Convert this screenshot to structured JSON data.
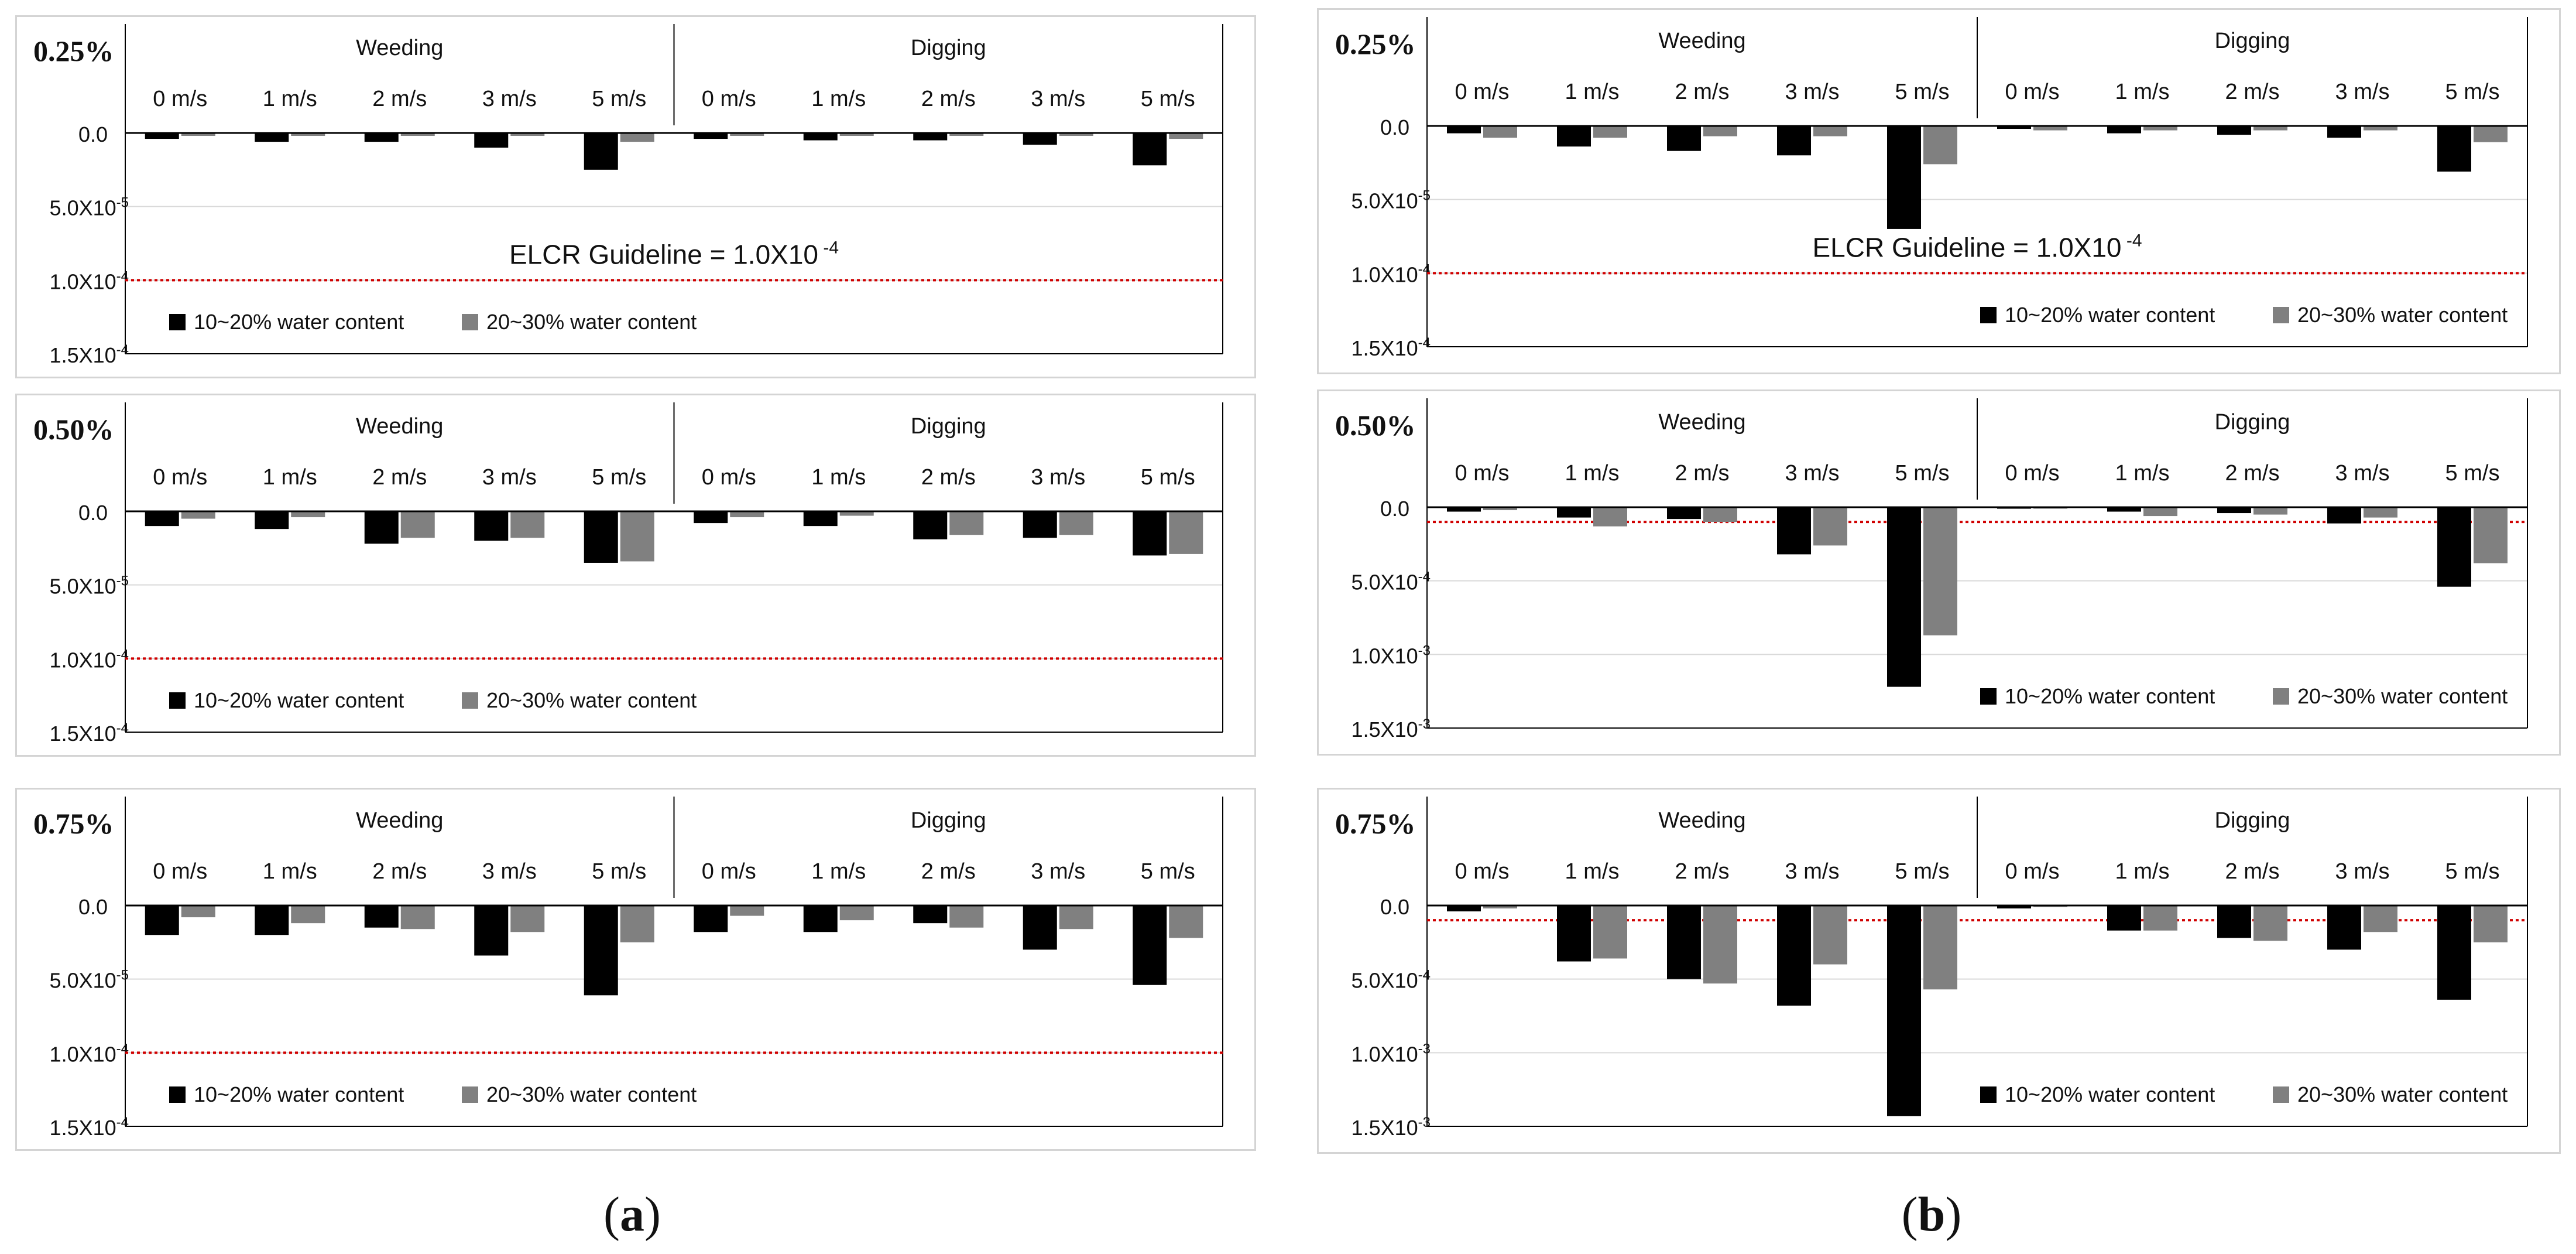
{
  "legend": {
    "series_1": "10~20% water content",
    "series_2": "20~30% water content"
  },
  "guideline_label_base": "ELCR Guideline = 1.0X10",
  "guideline_label_exp": "-4",
  "captions": [
    {
      "open": "(",
      "letter": "a",
      "close": ")"
    },
    {
      "open": "(",
      "letter": "b",
      "close": ")"
    }
  ],
  "colors": {
    "series_1": "#000000",
    "series_2": "#808080",
    "guideline": "#d00000",
    "grid": "#d9d9d9",
    "axis": "#000000"
  },
  "chart_data": [
    {
      "id": "a1",
      "type": "bar",
      "percent_label": "0.25%",
      "groups": [
        "Weeding",
        "Digging"
      ],
      "categories": [
        "0 m/s",
        "1 m/s",
        "2 m/s",
        "3 m/s",
        "5 m/s",
        "0 m/s",
        "1 m/s",
        "2 m/s",
        "3 m/s",
        "5 m/s"
      ],
      "ylim": [
        0,
        0.00015
      ],
      "y_ticks": [
        0,
        5e-05,
        0.0001,
        0.00015
      ],
      "tick_labels": [
        {
          "m": "0.0",
          "e": ""
        },
        {
          "m": "5.0X10",
          "e": "-5"
        },
        {
          "m": "1.0X10",
          "e": "-4"
        },
        {
          "m": "1.5X10",
          "e": "-4"
        }
      ],
      "guideline": 0.0001,
      "show_guideline_label": true,
      "series": [
        {
          "name": "10~20% water content",
          "values": [
            4e-06,
            6e-06,
            6e-06,
            1e-05,
            2.5e-05,
            4e-06,
            5e-06,
            5e-06,
            8e-06,
            2.2e-05
          ]
        },
        {
          "name": "20~30% water content",
          "values": [
            2e-06,
            2e-06,
            2e-06,
            2e-06,
            6e-06,
            2e-06,
            2e-06,
            2e-06,
            2e-06,
            4e-06
          ]
        }
      ]
    },
    {
      "id": "a2",
      "type": "bar",
      "percent_label": "0.50%",
      "groups": [
        "Weeding",
        "Digging"
      ],
      "categories": [
        "0 m/s",
        "1 m/s",
        "2 m/s",
        "3 m/s",
        "5 m/s",
        "0 m/s",
        "1 m/s",
        "2 m/s",
        "3 m/s",
        "5 m/s"
      ],
      "ylim": [
        0,
        0.00015
      ],
      "y_ticks": [
        0,
        5e-05,
        0.0001,
        0.00015
      ],
      "tick_labels": [
        {
          "m": "0.0",
          "e": ""
        },
        {
          "m": "5.0X10",
          "e": "-5"
        },
        {
          "m": "1.0X10",
          "e": "-4"
        },
        {
          "m": "1.5X10",
          "e": "-4"
        }
      ],
      "guideline": 0.0001,
      "show_guideline_label": false,
      "series": [
        {
          "name": "10~20% water content",
          "values": [
            1e-05,
            1.2e-05,
            2.2e-05,
            2e-05,
            3.5e-05,
            8e-06,
            1e-05,
            1.9e-05,
            1.8e-05,
            3e-05
          ]
        },
        {
          "name": "20~30% water content",
          "values": [
            5e-06,
            4e-06,
            1.8e-05,
            1.8e-05,
            3.4e-05,
            4e-06,
            3e-06,
            1.6e-05,
            1.6e-05,
            2.9e-05
          ]
        }
      ]
    },
    {
      "id": "a3",
      "type": "bar",
      "percent_label": "0.75%",
      "groups": [
        "Weeding",
        "Digging"
      ],
      "categories": [
        "0 m/s",
        "1 m/s",
        "2 m/s",
        "3 m/s",
        "5 m/s",
        "0 m/s",
        "1 m/s",
        "2 m/s",
        "3 m/s",
        "5 m/s"
      ],
      "ylim": [
        0,
        0.00015
      ],
      "y_ticks": [
        0,
        5e-05,
        0.0001,
        0.00015
      ],
      "tick_labels": [
        {
          "m": "0.0",
          "e": ""
        },
        {
          "m": "5.0X10",
          "e": "-5"
        },
        {
          "m": "1.0X10",
          "e": "-4"
        },
        {
          "m": "1.5X10",
          "e": "-4"
        }
      ],
      "guideline": 0.0001,
      "show_guideline_label": false,
      "series": [
        {
          "name": "10~20% water content",
          "values": [
            2e-05,
            2e-05,
            1.5e-05,
            3.4e-05,
            6.1e-05,
            1.8e-05,
            1.8e-05,
            1.2e-05,
            3e-05,
            5.4e-05
          ]
        },
        {
          "name": "20~30% water content",
          "values": [
            8e-06,
            1.2e-05,
            1.6e-05,
            1.8e-05,
            2.5e-05,
            7e-06,
            1e-05,
            1.5e-05,
            1.6e-05,
            2.2e-05
          ]
        }
      ]
    },
    {
      "id": "b1",
      "type": "bar",
      "percent_label": "0.25%",
      "groups": [
        "Weeding",
        "Digging"
      ],
      "categories": [
        "0 m/s",
        "1 m/s",
        "2 m/s",
        "3 m/s",
        "5 m/s",
        "0 m/s",
        "1 m/s",
        "2 m/s",
        "3 m/s",
        "5 m/s"
      ],
      "ylim": [
        0,
        0.00015
      ],
      "y_ticks": [
        0,
        5e-05,
        0.0001,
        0.00015
      ],
      "tick_labels": [
        {
          "m": "0.0",
          "e": ""
        },
        {
          "m": "5.0X10",
          "e": "-5"
        },
        {
          "m": "1.0X10",
          "e": "-4"
        },
        {
          "m": "1.5X10",
          "e": "-4"
        }
      ],
      "guideline": 0.0001,
      "show_guideline_label": true,
      "series": [
        {
          "name": "10~20% water content",
          "values": [
            5e-06,
            1.4e-05,
            1.7e-05,
            2e-05,
            7e-05,
            2e-06,
            5e-06,
            6e-06,
            8e-06,
            3.1e-05
          ]
        },
        {
          "name": "20~30% water content",
          "values": [
            8e-06,
            8e-06,
            7e-06,
            7e-06,
            2.6e-05,
            3e-06,
            3e-06,
            3e-06,
            3e-06,
            1.1e-05
          ]
        }
      ]
    },
    {
      "id": "b2",
      "type": "bar",
      "percent_label": "0.50%",
      "groups": [
        "Weeding",
        "Digging"
      ],
      "categories": [
        "0 m/s",
        "1 m/s",
        "2 m/s",
        "3 m/s",
        "5 m/s",
        "0 m/s",
        "1 m/s",
        "2 m/s",
        "3 m/s",
        "5 m/s"
      ],
      "ylim": [
        0,
        0.0015
      ],
      "y_ticks": [
        0,
        0.0005,
        0.001,
        0.0015
      ],
      "tick_labels": [
        {
          "m": "0.0",
          "e": ""
        },
        {
          "m": "5.0X10",
          "e": "-4"
        },
        {
          "m": "1.0X10",
          "e": "-3"
        },
        {
          "m": "1.5X10",
          "e": "-3"
        }
      ],
      "guideline": 0.0001,
      "show_guideline_label": false,
      "series": [
        {
          "name": "10~20% water content",
          "values": [
            3e-05,
            7e-05,
            8e-05,
            0.00032,
            0.00122,
            1e-05,
            3e-05,
            4e-05,
            0.00011,
            0.00054
          ]
        },
        {
          "name": "20~30% water content",
          "values": [
            2e-05,
            0.00013,
            0.0001,
            0.00026,
            0.00087,
            1e-05,
            6e-05,
            5e-05,
            7e-05,
            0.00038
          ]
        }
      ]
    },
    {
      "id": "b3",
      "type": "bar",
      "percent_label": "0.75%",
      "groups": [
        "Weeding",
        "Digging"
      ],
      "categories": [
        "0 m/s",
        "1 m/s",
        "2 m/s",
        "3 m/s",
        "5 m/s",
        "0 m/s",
        "1 m/s",
        "2 m/s",
        "3 m/s",
        "5 m/s"
      ],
      "ylim": [
        0,
        0.0015
      ],
      "y_ticks": [
        0,
        0.0005,
        0.001,
        0.0015
      ],
      "tick_labels": [
        {
          "m": "0.0",
          "e": ""
        },
        {
          "m": "5.0X10",
          "e": "-4"
        },
        {
          "m": "1.0X10",
          "e": "-3"
        },
        {
          "m": "1.5X10",
          "e": "-3"
        }
      ],
      "guideline": 0.0001,
      "show_guideline_label": false,
      "series": [
        {
          "name": "10~20% water content",
          "values": [
            4e-05,
            0.00038,
            0.0005,
            0.00068,
            0.00143,
            2e-05,
            0.00017,
            0.00022,
            0.0003,
            0.00064
          ]
        },
        {
          "name": "20~30% water content",
          "values": [
            2e-05,
            0.00036,
            0.00053,
            0.0004,
            0.00057,
            1e-05,
            0.00017,
            0.00024,
            0.00018,
            0.00025
          ]
        }
      ]
    }
  ]
}
